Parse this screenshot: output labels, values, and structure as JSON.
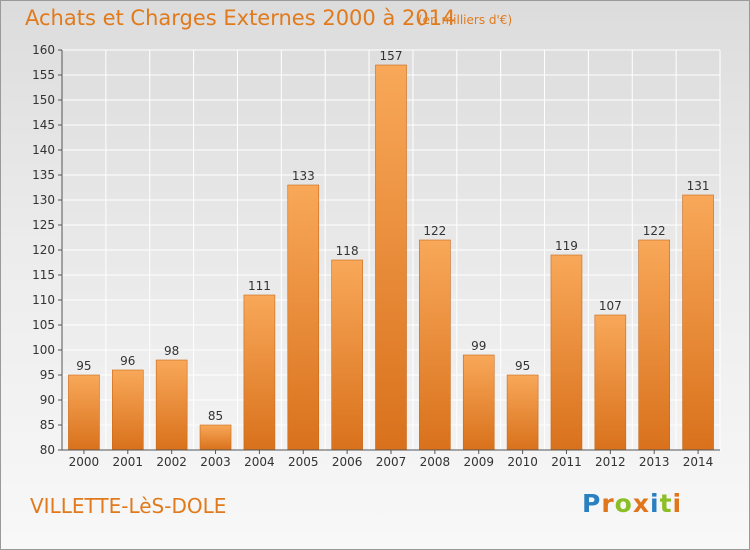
{
  "header": {
    "title": "Achats et Charges Externes 2000 à 2014",
    "subtitle": "(en milliers d'€)"
  },
  "footer": {
    "commune": "VILLETTE-LèS-DOLE",
    "logo_text": "Proxiti"
  },
  "colors": {
    "accent": "#e07a1c",
    "bar_light": "#f8a859",
    "bar_dark": "#d9711c",
    "logo": [
      "#2a7fc0",
      "#e0751c",
      "#8cbf26",
      "#e0751c",
      "#2a7fc0",
      "#8cbf26",
      "#e0751c"
    ]
  },
  "chart_data": {
    "type": "bar",
    "title": "Achats et Charges Externes 2000 à 2014",
    "subtitle": "(en milliers d'€)",
    "xlabel": "",
    "ylabel": "",
    "categories": [
      "2000",
      "2001",
      "2002",
      "2003",
      "2004",
      "2005",
      "2006",
      "2007",
      "2008",
      "2009",
      "2010",
      "2011",
      "2012",
      "2013",
      "2014"
    ],
    "values": [
      95,
      96,
      98,
      85,
      111,
      133,
      118,
      157,
      122,
      99,
      95,
      119,
      107,
      122,
      131
    ],
    "ylim": [
      80,
      160
    ],
    "yticks": [
      80,
      85,
      90,
      95,
      100,
      105,
      110,
      115,
      120,
      125,
      130,
      135,
      140,
      145,
      150,
      155,
      160
    ],
    "grid": true,
    "data_labels": true
  }
}
